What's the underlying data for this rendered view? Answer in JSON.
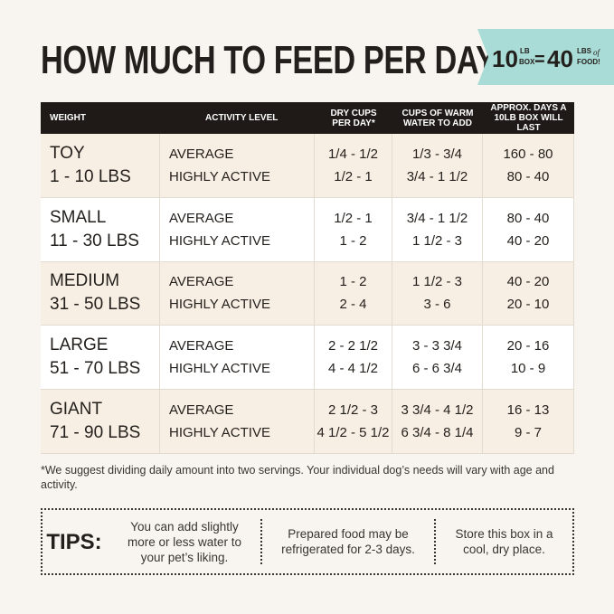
{
  "title": "HOW MUCH TO FEED PER DAY",
  "badge": {
    "box_amount": "10",
    "box_unit_top": "LB",
    "box_unit_bottom": "BOX",
    "equals": "=",
    "food_amount": "40",
    "food_unit_top": "LBS",
    "food_unit_of": "of",
    "food_unit_bottom": "FOOD!"
  },
  "table": {
    "headers": [
      "WEIGHT",
      "ACTIVITY LEVEL",
      "DRY CUPS PER DAY*",
      "CUPS OF WARM WATER TO ADD",
      "APPROX. DAYS A 10LB BOX WILL LAST"
    ],
    "rows": [
      {
        "size": "TOY",
        "range": "1 - 10 LBS",
        "levels": [
          "AVERAGE",
          "HIGHLY ACTIVE"
        ],
        "dry": [
          "1/4 - 1/2",
          "1/2 - 1"
        ],
        "water": [
          "1/3 - 3/4",
          "3/4 - 1 1/2"
        ],
        "days": [
          "160 - 80",
          "80 - 40"
        ]
      },
      {
        "size": "SMALL",
        "range": "11 - 30 LBS",
        "levels": [
          "AVERAGE",
          "HIGHLY ACTIVE"
        ],
        "dry": [
          "1/2 - 1",
          "1 - 2"
        ],
        "water": [
          "3/4 - 1 1/2",
          "1 1/2 - 3"
        ],
        "days": [
          "80 - 40",
          "40 - 20"
        ]
      },
      {
        "size": "MEDIUM",
        "range": "31 - 50 LBS",
        "levels": [
          "AVERAGE",
          "HIGHLY ACTIVE"
        ],
        "dry": [
          "1 - 2",
          "2 - 4"
        ],
        "water": [
          "1 1/2 - 3",
          "3 - 6"
        ],
        "days": [
          "40 - 20",
          "20 - 10"
        ]
      },
      {
        "size": "LARGE",
        "range": "51 - 70 LBS",
        "levels": [
          "AVERAGE",
          "HIGHLY ACTIVE"
        ],
        "dry": [
          "2 - 2 1/2",
          "4 - 4 1/2"
        ],
        "water": [
          "3 - 3 3/4",
          "6 - 6 3/4"
        ],
        "days": [
          "20 - 16",
          "10 - 9"
        ]
      },
      {
        "size": "GIANT",
        "range": "71 - 90 LBS",
        "levels": [
          "AVERAGE",
          "HIGHLY ACTIVE"
        ],
        "dry": [
          "2 1/2 - 3",
          "4 1/2 - 5 1/2"
        ],
        "water": [
          "3 3/4 - 4 1/2",
          "6 3/4 - 8 1/4"
        ],
        "days": [
          "16 - 13",
          "9 - 7"
        ]
      }
    ]
  },
  "footnote": "*We suggest dividing daily amount into two servings. Your individual dog’s needs will vary with age and activity.",
  "tips": {
    "label": "TIPS:",
    "items": [
      "You can add slightly more or less water to your pet’s liking.",
      "Prepared food may be refrigerated for 2-3 days.",
      "Store this box in a cool, dry place."
    ]
  }
}
